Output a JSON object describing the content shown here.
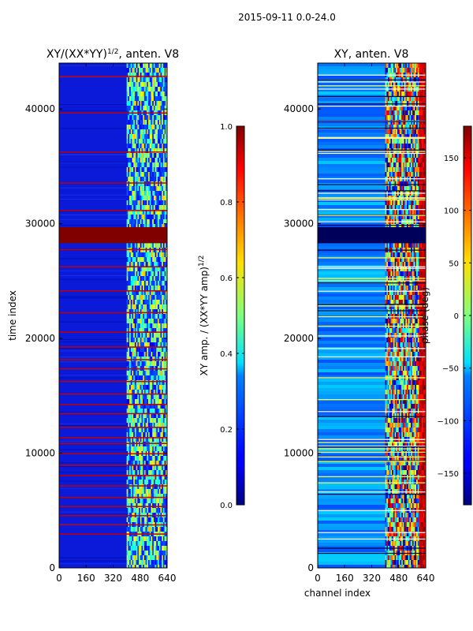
{
  "figure_title": "2015-09-11 0.0-24.0",
  "chart_data": [
    {
      "type": "heatmap",
      "title_base": "XY/(XX*YY)",
      "title_exp": "1/2",
      "title_suffix": ", anten. V8",
      "xlabel": "",
      "ylabel": "time index",
      "xlim": [
        0,
        640
      ],
      "ylim": [
        0,
        44000
      ],
      "xticks": [
        0,
        160,
        320,
        480,
        640
      ],
      "yticks": [
        0,
        10000,
        20000,
        30000,
        40000
      ],
      "colormap": "jet",
      "colorbar": {
        "label_base": "XY amp. / (XX*YY amp)",
        "label_exp": "1/2",
        "range": [
          0.0,
          1.0
        ],
        "ticks": [
          "0.0",
          "0.2",
          "0.4",
          "0.6",
          "0.8",
          "1.0"
        ]
      },
      "saturated_time_band": [
        28300,
        29700
      ],
      "saturated_rows": [
        3000,
        3800,
        4600,
        5400,
        6200,
        7200,
        8100,
        9000,
        10000,
        10900,
        11400,
        12300,
        13500,
        14300,
        15200,
        16300,
        17400,
        18200,
        19300,
        20600,
        22300,
        24200,
        26300,
        27800,
        31200,
        33600,
        36300,
        39700,
        42900
      ],
      "active_channel_range": [
        400,
        640
      ]
    },
    {
      "type": "heatmap",
      "title": "XY, anten. V8",
      "xlabel": "channel index",
      "ylabel": "",
      "xlim": [
        0,
        640
      ],
      "ylim": [
        0,
        44000
      ],
      "xticks": [
        0,
        160,
        320,
        480,
        640
      ],
      "yticks": [
        0,
        10000,
        20000,
        30000,
        40000
      ],
      "colormap": "jet",
      "colorbar": {
        "label": "phase (deg)",
        "range": [
          -180,
          180
        ],
        "ticks": [
          "−150",
          "−100",
          "−50",
          "0",
          "50",
          "100",
          "150"
        ]
      },
      "active_channel_range": [
        400,
        640
      ]
    }
  ]
}
